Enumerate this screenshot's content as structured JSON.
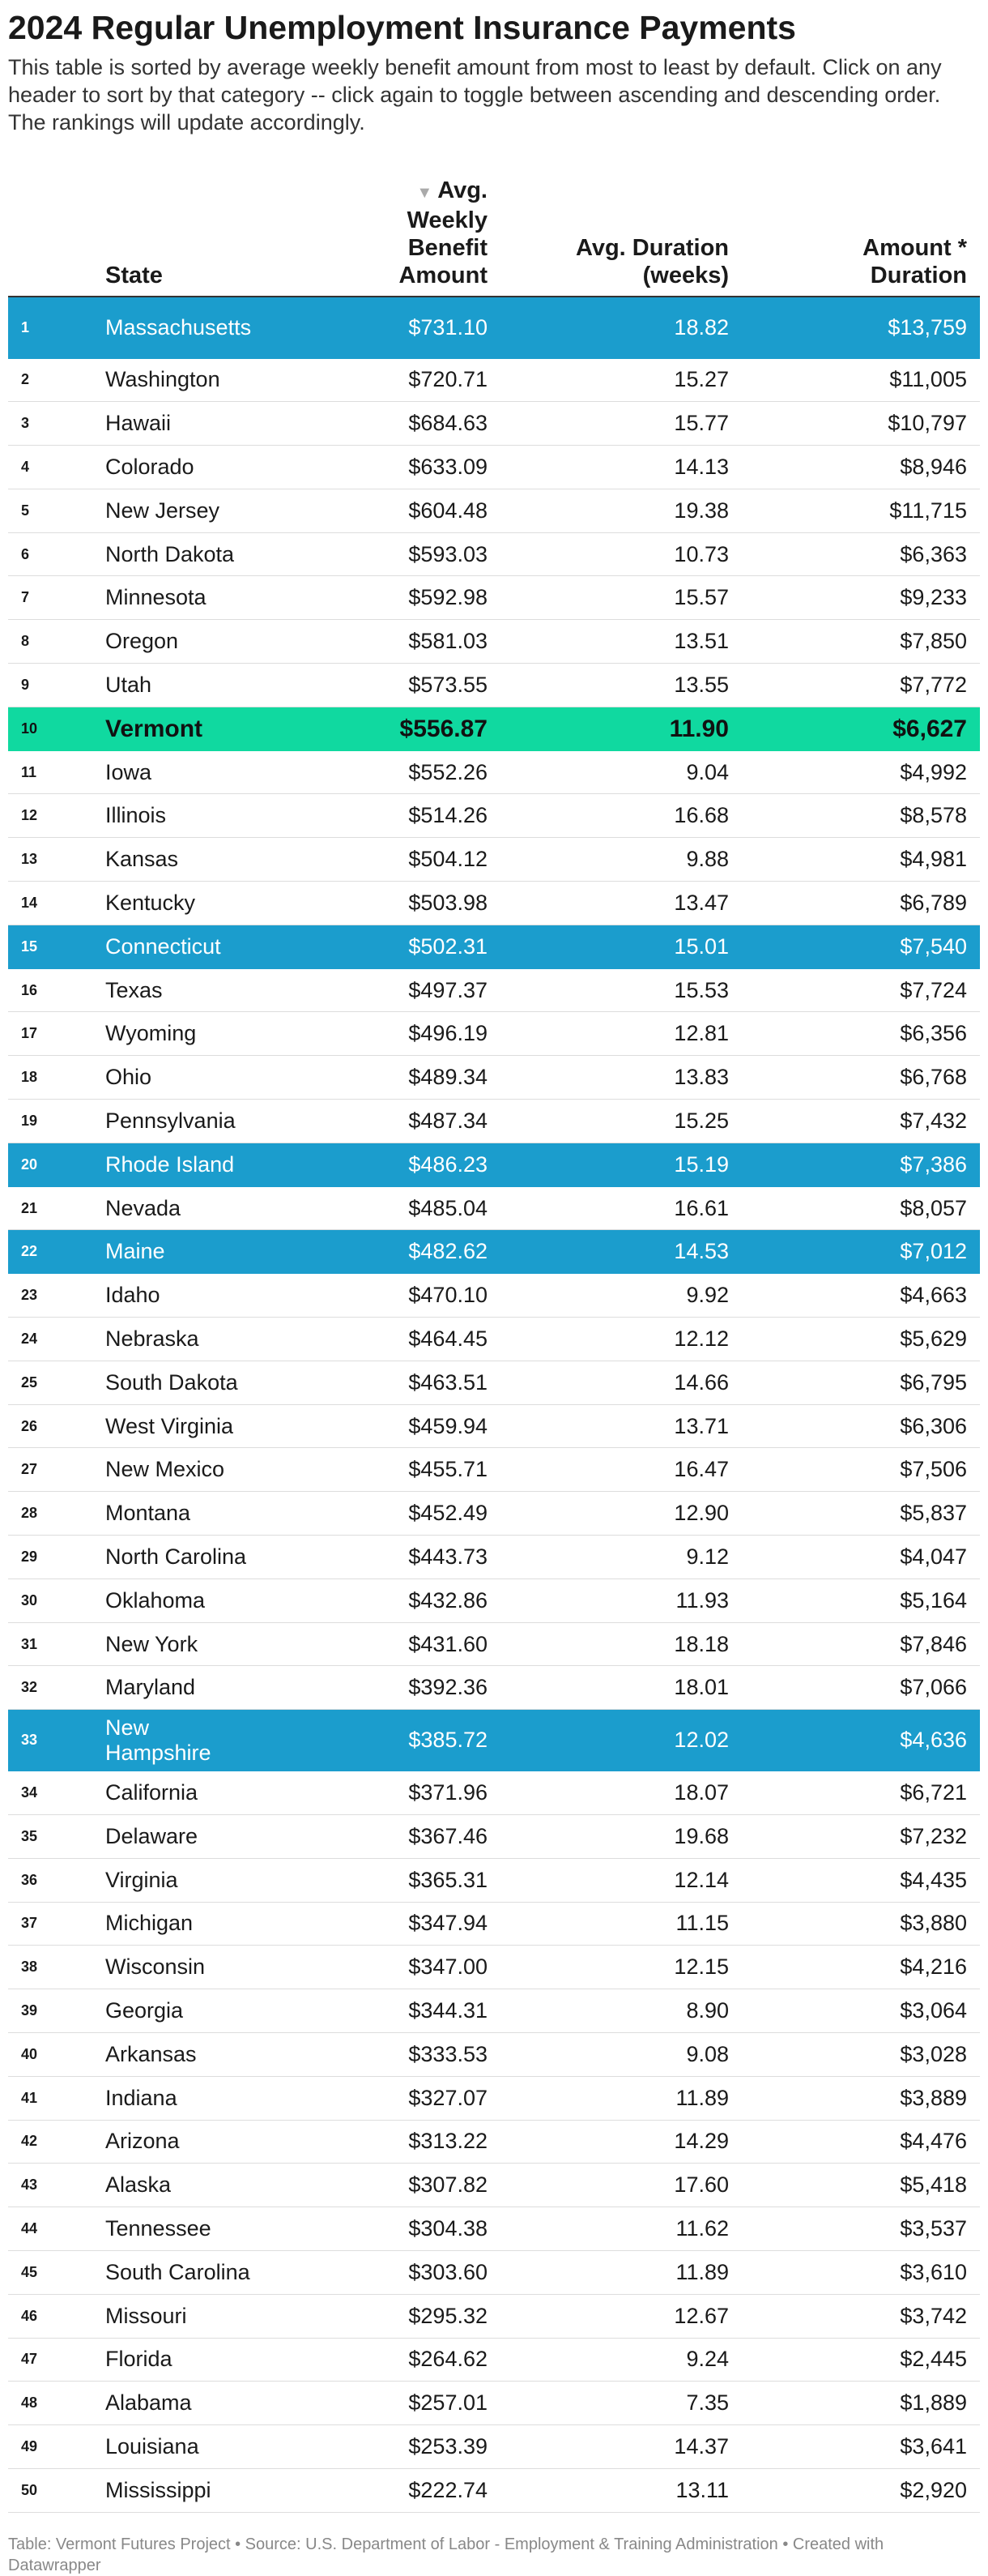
{
  "page": {
    "title": "2024 Regular Unemployment Insurance Payments",
    "description": "This table is sorted by average weekly benefit amount from most to least by default. Click on any header to sort by that category -- click again to toggle between ascending and descending order. The rankings will update accordingly.",
    "footer": "Table: Vermont Futures Project • Source: U.S. Department of Labor - Employment & Training Administration • Created with Datawrapper"
  },
  "colors": {
    "highlight_blue": "#1b9dcd",
    "highlight_green": "#10d9a0",
    "sort_arrow": "#aaaaaa"
  },
  "chart_data": {
    "type": "table",
    "sort": {
      "column": "amount",
      "direction": "descending",
      "indicator_icon": "sort-down-triangle-icon"
    },
    "columns": [
      {
        "key": "rank",
        "label": ""
      },
      {
        "key": "state",
        "label": "State"
      },
      {
        "key": "amount",
        "label_line1": "Avg. Weekly",
        "label_line2": "Benefit Amount",
        "sort_glyph": "▼"
      },
      {
        "key": "duration",
        "label_line1": "Avg. Duration",
        "label_line2": "(weeks)"
      },
      {
        "key": "total",
        "label_line1": "Amount *",
        "label_line2": "Duration"
      }
    ],
    "rows": [
      {
        "rank": "1",
        "state": "Massachusetts",
        "amount": "$731.10",
        "duration": "18.82",
        "total": "$13,759",
        "highlight": "blue"
      },
      {
        "rank": "2",
        "state": "Washington",
        "amount": "$720.71",
        "duration": "15.27",
        "total": "$11,005",
        "highlight": ""
      },
      {
        "rank": "3",
        "state": "Hawaii",
        "amount": "$684.63",
        "duration": "15.77",
        "total": "$10,797",
        "highlight": ""
      },
      {
        "rank": "4",
        "state": "Colorado",
        "amount": "$633.09",
        "duration": "14.13",
        "total": "$8,946",
        "highlight": ""
      },
      {
        "rank": "5",
        "state": "New Jersey",
        "amount": "$604.48",
        "duration": "19.38",
        "total": "$11,715",
        "highlight": ""
      },
      {
        "rank": "6",
        "state": "North Dakota",
        "amount": "$593.03",
        "duration": "10.73",
        "total": "$6,363",
        "highlight": ""
      },
      {
        "rank": "7",
        "state": "Minnesota",
        "amount": "$592.98",
        "duration": "15.57",
        "total": "$9,233",
        "highlight": ""
      },
      {
        "rank": "8",
        "state": "Oregon",
        "amount": "$581.03",
        "duration": "13.51",
        "total": "$7,850",
        "highlight": ""
      },
      {
        "rank": "9",
        "state": "Utah",
        "amount": "$573.55",
        "duration": "13.55",
        "total": "$7,772",
        "highlight": ""
      },
      {
        "rank": "10",
        "state": "Vermont",
        "amount": "$556.87",
        "duration": "11.90",
        "total": "$6,627",
        "highlight": "green"
      },
      {
        "rank": "11",
        "state": "Iowa",
        "amount": "$552.26",
        "duration": "9.04",
        "total": "$4,992",
        "highlight": ""
      },
      {
        "rank": "12",
        "state": "Illinois",
        "amount": "$514.26",
        "duration": "16.68",
        "total": "$8,578",
        "highlight": ""
      },
      {
        "rank": "13",
        "state": "Kansas",
        "amount": "$504.12",
        "duration": "9.88",
        "total": "$4,981",
        "highlight": ""
      },
      {
        "rank": "14",
        "state": "Kentucky",
        "amount": "$503.98",
        "duration": "13.47",
        "total": "$6,789",
        "highlight": ""
      },
      {
        "rank": "15",
        "state": "Connecticut",
        "amount": "$502.31",
        "duration": "15.01",
        "total": "$7,540",
        "highlight": "blue"
      },
      {
        "rank": "16",
        "state": "Texas",
        "amount": "$497.37",
        "duration": "15.53",
        "total": "$7,724",
        "highlight": ""
      },
      {
        "rank": "17",
        "state": "Wyoming",
        "amount": "$496.19",
        "duration": "12.81",
        "total": "$6,356",
        "highlight": ""
      },
      {
        "rank": "18",
        "state": "Ohio",
        "amount": "$489.34",
        "duration": "13.83",
        "total": "$6,768",
        "highlight": ""
      },
      {
        "rank": "19",
        "state": "Pennsylvania",
        "amount": "$487.34",
        "duration": "15.25",
        "total": "$7,432",
        "highlight": ""
      },
      {
        "rank": "20",
        "state": "Rhode Island",
        "amount": "$486.23",
        "duration": "15.19",
        "total": "$7,386",
        "highlight": "blue"
      },
      {
        "rank": "21",
        "state": "Nevada",
        "amount": "$485.04",
        "duration": "16.61",
        "total": "$8,057",
        "highlight": ""
      },
      {
        "rank": "22",
        "state": "Maine",
        "amount": "$482.62",
        "duration": "14.53",
        "total": "$7,012",
        "highlight": "blue"
      },
      {
        "rank": "23",
        "state": "Idaho",
        "amount": "$470.10",
        "duration": "9.92",
        "total": "$4,663",
        "highlight": ""
      },
      {
        "rank": "24",
        "state": "Nebraska",
        "amount": "$464.45",
        "duration": "12.12",
        "total": "$5,629",
        "highlight": ""
      },
      {
        "rank": "25",
        "state": "South Dakota",
        "amount": "$463.51",
        "duration": "14.66",
        "total": "$6,795",
        "highlight": ""
      },
      {
        "rank": "26",
        "state": "West Virginia",
        "amount": "$459.94",
        "duration": "13.71",
        "total": "$6,306",
        "highlight": ""
      },
      {
        "rank": "27",
        "state": "New Mexico",
        "amount": "$455.71",
        "duration": "16.47",
        "total": "$7,506",
        "highlight": ""
      },
      {
        "rank": "28",
        "state": "Montana",
        "amount": "$452.49",
        "duration": "12.90",
        "total": "$5,837",
        "highlight": ""
      },
      {
        "rank": "29",
        "state": "North Carolina",
        "amount": "$443.73",
        "duration": "9.12",
        "total": "$4,047",
        "highlight": ""
      },
      {
        "rank": "30",
        "state": "Oklahoma",
        "amount": "$432.86",
        "duration": "11.93",
        "total": "$5,164",
        "highlight": ""
      },
      {
        "rank": "31",
        "state": "New York",
        "amount": "$431.60",
        "duration": "18.18",
        "total": "$7,846",
        "highlight": ""
      },
      {
        "rank": "32",
        "state": "Maryland",
        "amount": "$392.36",
        "duration": "18.01",
        "total": "$7,066",
        "highlight": ""
      },
      {
        "rank": "33",
        "state": "New Hampshire",
        "amount": "$385.72",
        "duration": "12.02",
        "total": "$4,636",
        "highlight": "blue"
      },
      {
        "rank": "34",
        "state": "California",
        "amount": "$371.96",
        "duration": "18.07",
        "total": "$6,721",
        "highlight": ""
      },
      {
        "rank": "35",
        "state": "Delaware",
        "amount": "$367.46",
        "duration": "19.68",
        "total": "$7,232",
        "highlight": ""
      },
      {
        "rank": "36",
        "state": "Virginia",
        "amount": "$365.31",
        "duration": "12.14",
        "total": "$4,435",
        "highlight": ""
      },
      {
        "rank": "37",
        "state": "Michigan",
        "amount": "$347.94",
        "duration": "11.15",
        "total": "$3,880",
        "highlight": ""
      },
      {
        "rank": "38",
        "state": "Wisconsin",
        "amount": "$347.00",
        "duration": "12.15",
        "total": "$4,216",
        "highlight": ""
      },
      {
        "rank": "39",
        "state": "Georgia",
        "amount": "$344.31",
        "duration": "8.90",
        "total": "$3,064",
        "highlight": ""
      },
      {
        "rank": "40",
        "state": "Arkansas",
        "amount": "$333.53",
        "duration": "9.08",
        "total": "$3,028",
        "highlight": ""
      },
      {
        "rank": "41",
        "state": "Indiana",
        "amount": "$327.07",
        "duration": "11.89",
        "total": "$3,889",
        "highlight": ""
      },
      {
        "rank": "42",
        "state": "Arizona",
        "amount": "$313.22",
        "duration": "14.29",
        "total": "$4,476",
        "highlight": ""
      },
      {
        "rank": "43",
        "state": "Alaska",
        "amount": "$307.82",
        "duration": "17.60",
        "total": "$5,418",
        "highlight": ""
      },
      {
        "rank": "44",
        "state": "Tennessee",
        "amount": "$304.38",
        "duration": "11.62",
        "total": "$3,537",
        "highlight": ""
      },
      {
        "rank": "45",
        "state": "South Carolina",
        "amount": "$303.60",
        "duration": "11.89",
        "total": "$3,610",
        "highlight": ""
      },
      {
        "rank": "46",
        "state": "Missouri",
        "amount": "$295.32",
        "duration": "12.67",
        "total": "$3,742",
        "highlight": ""
      },
      {
        "rank": "47",
        "state": "Florida",
        "amount": "$264.62",
        "duration": "9.24",
        "total": "$2,445",
        "highlight": ""
      },
      {
        "rank": "48",
        "state": "Alabama",
        "amount": "$257.01",
        "duration": "7.35",
        "total": "$1,889",
        "highlight": ""
      },
      {
        "rank": "49",
        "state": "Louisiana",
        "amount": "$253.39",
        "duration": "14.37",
        "total": "$3,641",
        "highlight": ""
      },
      {
        "rank": "50",
        "state": "Mississippi",
        "amount": "$222.74",
        "duration": "13.11",
        "total": "$2,920",
        "highlight": ""
      }
    ]
  }
}
